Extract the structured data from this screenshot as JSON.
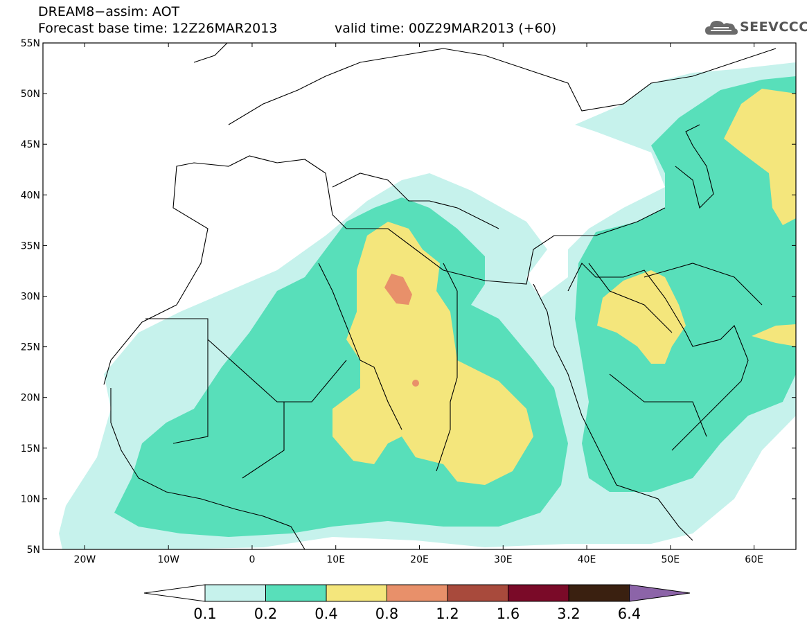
{
  "header": {
    "title_line1": "DREAM8−assim: AOT",
    "title_line2": "Forecast base time: 12Z26MAR2013",
    "valid_time": "valid time: 00Z29MAR2013 (+60)",
    "logo_text": "SEEVCCC"
  },
  "map": {
    "lat_labels": [
      "55N",
      "50N",
      "45N",
      "40N",
      "35N",
      "30N",
      "25N",
      "20N",
      "15N",
      "10N",
      "5N"
    ],
    "lon_labels": [
      "20W",
      "10W",
      "0",
      "10E",
      "20E",
      "30E",
      "40E",
      "50E",
      "60E"
    ],
    "lat_range": [
      5,
      55
    ],
    "lon_range": [
      -25,
      65
    ],
    "land_color": "#ffffff",
    "border_color": "#000000"
  },
  "colorbar": {
    "labels": [
      "0.1",
      "0.2",
      "0.4",
      "0.8",
      "1.2",
      "1.6",
      "3.2",
      "6.4"
    ],
    "colors": [
      "#ffffff",
      "#c6f2ec",
      "#58dfba",
      "#f4e67c",
      "#e8906a",
      "#a84a3c",
      "#7a0a28",
      "#3a2010",
      "#8c64a8"
    ]
  },
  "legend_colors": {
    "c01": "#c6f2ec",
    "c02": "#58dfba",
    "c04": "#f4e67c",
    "c08": "#e8906a",
    "c12": "#a84a3c"
  }
}
